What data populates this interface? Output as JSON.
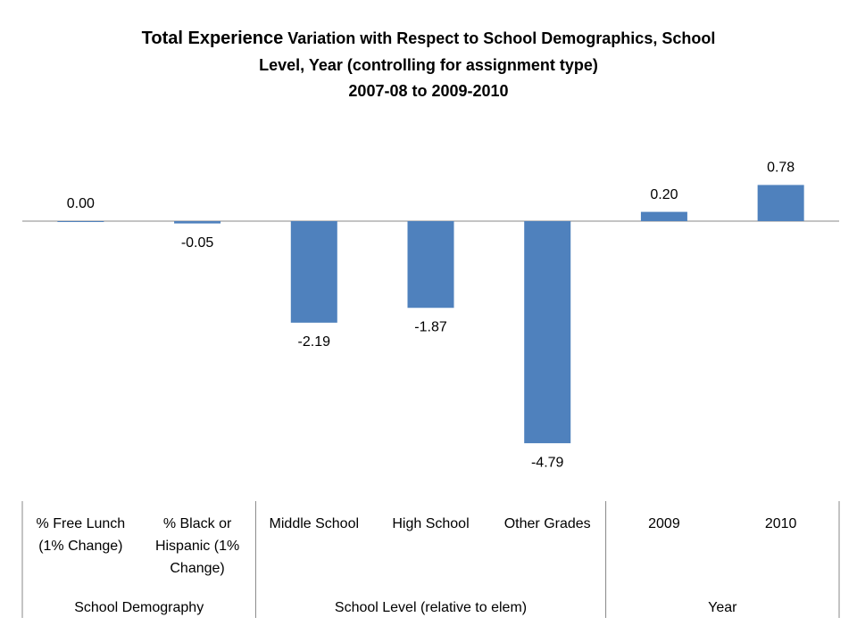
{
  "chart_data": {
    "type": "bar",
    "title": {
      "emphasis": "Total Experience",
      "lines": [
        "Variation with Respect to School Demographics, School",
        "Level, Year (controlling for assignment type)"
      ]
    },
    "subtitle": "2007-08 to 2009-2010",
    "groups": [
      {
        "name": "School Demography",
        "categories": [
          [
            "% Free Lunch",
            "(1% Change)"
          ],
          [
            "% Black or",
            "Hispanic (1%",
            "Change)"
          ]
        ]
      },
      {
        "name": "School Level (relative to elem)",
        "categories": [
          [
            "Middle School"
          ],
          [
            "High School"
          ],
          [
            "Other Grades"
          ]
        ]
      },
      {
        "name": "Year",
        "categories": [
          [
            "2009"
          ],
          [
            "2010"
          ]
        ]
      }
    ],
    "values": [
      0.0,
      -0.05,
      -2.19,
      -1.87,
      -4.79,
      0.2,
      0.78
    ],
    "value_labels": [
      "0.00",
      "-0.05",
      "-2.19",
      "-1.87",
      "-4.79",
      "0.20",
      "0.78"
    ],
    "color": "#4f81bd"
  }
}
